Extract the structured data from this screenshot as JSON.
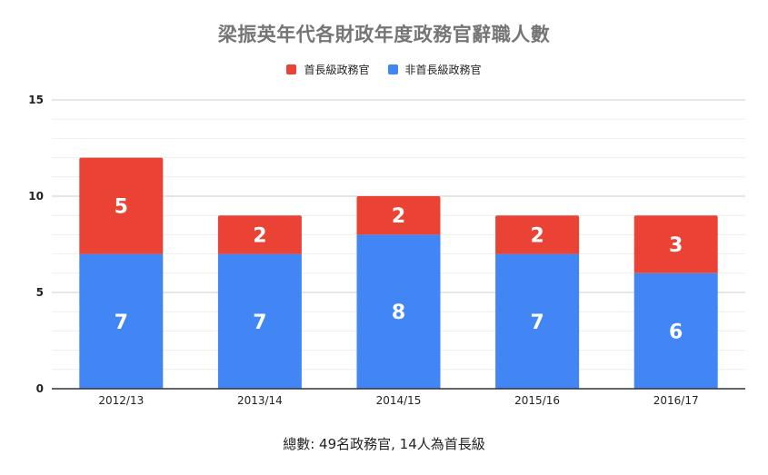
{
  "chart_data": {
    "type": "bar",
    "stacked": true,
    "title": "梁振英年代各財政年度政務官辭職人數",
    "categories": [
      "2012/13",
      "2013/14",
      "2014/15",
      "2015/16",
      "2016/17"
    ],
    "series": [
      {
        "name": "非首長級政務官",
        "values": [
          7,
          7,
          8,
          7,
          6
        ],
        "color": "#4285f4"
      },
      {
        "name": "首長級政務官",
        "values": [
          5,
          2,
          2,
          2,
          3
        ],
        "color": "#ea4335"
      }
    ],
    "legend_order": [
      "首長級政務官",
      "非首長級政務官"
    ],
    "legend_position": "top-center",
    "ylim": [
      0,
      15
    ],
    "yticks": [
      0,
      5,
      10,
      15
    ],
    "grid": true,
    "xlabel": "",
    "ylabel": ""
  },
  "footnote": "總數: 49名政務官, 14人為首長級"
}
